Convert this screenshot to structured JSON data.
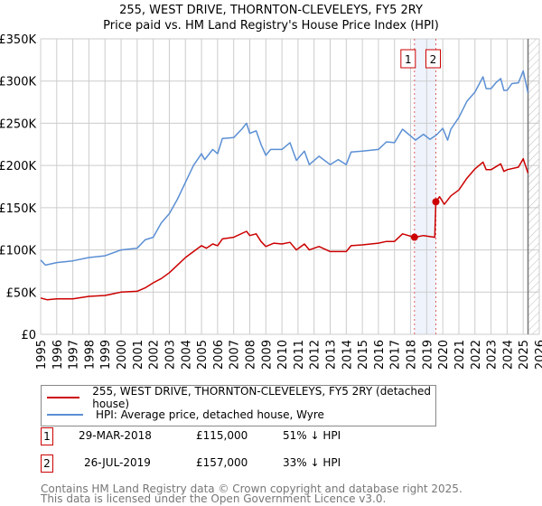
{
  "chart_data": {
    "type": "line",
    "title": "255, WEST DRIVE, THORNTON-CLEVELEYS, FY5 2RY",
    "subtitle": "Price paid vs. HM Land Registry's House Price Index (HPI)",
    "xlabel": "",
    "ylabel": "",
    "xlim": [
      1995,
      2026
    ],
    "ylim": [
      0,
      350000
    ],
    "y_ticks": [
      {
        "value": 0,
        "label": "£0"
      },
      {
        "value": 50000,
        "label": "£50K"
      },
      {
        "value": 100000,
        "label": "£100K"
      },
      {
        "value": 150000,
        "label": "£150K"
      },
      {
        "value": 200000,
        "label": "£200K"
      },
      {
        "value": 250000,
        "label": "£250K"
      },
      {
        "value": 300000,
        "label": "£300K"
      },
      {
        "value": 350000,
        "label": "£350K"
      }
    ],
    "x_ticks": [
      "1995",
      "1996",
      "1997",
      "1998",
      "1999",
      "2000",
      "2001",
      "2002",
      "2003",
      "2004",
      "2005",
      "2006",
      "2007",
      "2008",
      "2009",
      "2010",
      "2011",
      "2012",
      "2013",
      "2014",
      "2015",
      "2016",
      "2017",
      "2018",
      "2019",
      "2020",
      "2021",
      "2022",
      "2023",
      "2024",
      "2025",
      "2026"
    ],
    "grid": true,
    "today_marker": 2025.3,
    "shaded_range": [
      2018.24,
      2019.57
    ],
    "series": [
      {
        "name": "255, WEST DRIVE, THORNTON-CLEVELEYS, FY5 2RY (detached house)",
        "color": "#cc0000",
        "x": [
          1995,
          1995.4,
          1996,
          1997,
          1998,
          1999,
          2000,
          2001,
          2001.5,
          2002,
          2002.5,
          2003,
          2003.5,
          2004,
          2004.5,
          2005,
          2005.3,
          2005.7,
          2006,
          2006.3,
          2007,
          2007.8,
          2008,
          2008.4,
          2008.7,
          2009,
          2009.5,
          2010,
          2010.5,
          2010.9,
          2011.4,
          2011.7,
          2012.3,
          2013,
          2014,
          2014.3,
          2015,
          2016,
          2016.5,
          2017,
          2017.5,
          2018.24,
          2018.8,
          2019.5,
          2019.57,
          2019.8,
          2020.1,
          2020.5,
          2021,
          2021.5,
          2022,
          2022.5,
          2022.7,
          2023,
          2023.6,
          2023.8,
          2024,
          2024.7,
          2025.0,
          2025.3
        ],
        "y": [
          43000,
          41000,
          42000,
          42000,
          45000,
          46000,
          50000,
          51000,
          55000,
          61000,
          66000,
          73000,
          82000,
          91000,
          98000,
          105000,
          102000,
          107000,
          105000,
          113000,
          115000,
          122000,
          117000,
          119000,
          110000,
          104000,
          108000,
          107000,
          109000,
          100000,
          107000,
          100000,
          104000,
          98000,
          98000,
          105000,
          106000,
          108000,
          110000,
          110000,
          119000,
          115000,
          117000,
          115000,
          157000,
          163000,
          154000,
          164000,
          171000,
          185000,
          196000,
          204000,
          195000,
          195000,
          202000,
          193000,
          195000,
          198000,
          208000,
          191000
        ]
      },
      {
        "name": "HPI: Average price, detached house, Wyre",
        "color": "#5b8fd4",
        "x": [
          1995,
          1995.3,
          1996,
          1997,
          1998,
          1999,
          2000,
          2001,
          2001.5,
          2002,
          2002.5,
          2003,
          2003.5,
          2004,
          2004.5,
          2005,
          2005.2,
          2005.7,
          2006,
          2006.3,
          2007,
          2007.5,
          2007.8,
          2008,
          2008.4,
          2008.7,
          2009,
          2009.3,
          2010,
          2010.5,
          2010.9,
          2011.4,
          2011.7,
          2012.3,
          2013,
          2013.5,
          2014,
          2014.3,
          2015,
          2016,
          2016.5,
          2017,
          2017.5,
          2018,
          2018.3,
          2018.8,
          2019.2,
          2019.6,
          2020,
          2020.3,
          2020.5,
          2021,
          2021.5,
          2022,
          2022.5,
          2022.7,
          2023,
          2023.3,
          2023.6,
          2023.8,
          2024,
          2024.3,
          2024.7,
          2025.0,
          2025.3
        ],
        "y": [
          88000,
          82000,
          85000,
          87000,
          91000,
          93000,
          100000,
          102000,
          112000,
          115000,
          132000,
          143000,
          160000,
          180000,
          200000,
          214000,
          207000,
          219000,
          214000,
          232000,
          233000,
          243000,
          250000,
          238000,
          241000,
          225000,
          212000,
          219000,
          219000,
          227000,
          206000,
          217000,
          201000,
          211000,
          201000,
          207000,
          201000,
          216000,
          217000,
          219000,
          228000,
          227000,
          243000,
          235000,
          230000,
          237000,
          231000,
          236000,
          244000,
          230000,
          243000,
          257000,
          276000,
          287000,
          305000,
          291000,
          291000,
          298000,
          303000,
          289000,
          289000,
          297000,
          298000,
          312000,
          286000
        ]
      }
    ],
    "sales": [
      {
        "id": "1",
        "x": 2018.24,
        "y": 115000
      },
      {
        "id": "2",
        "x": 2019.57,
        "y": 157000
      }
    ]
  },
  "legend": {
    "property_label": "255, WEST DRIVE, THORNTON-CLEVELEYS, FY5 2RY (detached house)",
    "hpi_label": "HPI: Average price, detached house, Wyre"
  },
  "transactions": [
    {
      "id": "1",
      "date": "29-MAR-2018",
      "price": "£115,000",
      "hpi": "51% ↓ HPI"
    },
    {
      "id": "2",
      "date": "26-JUL-2019",
      "price": "£157,000",
      "hpi": "33% ↓ HPI"
    }
  ],
  "footer": {
    "line1": "Contains HM Land Registry data © Crown copyright and database right 2025.",
    "line2": "This data is licensed under the Open Government Licence v3.0."
  }
}
